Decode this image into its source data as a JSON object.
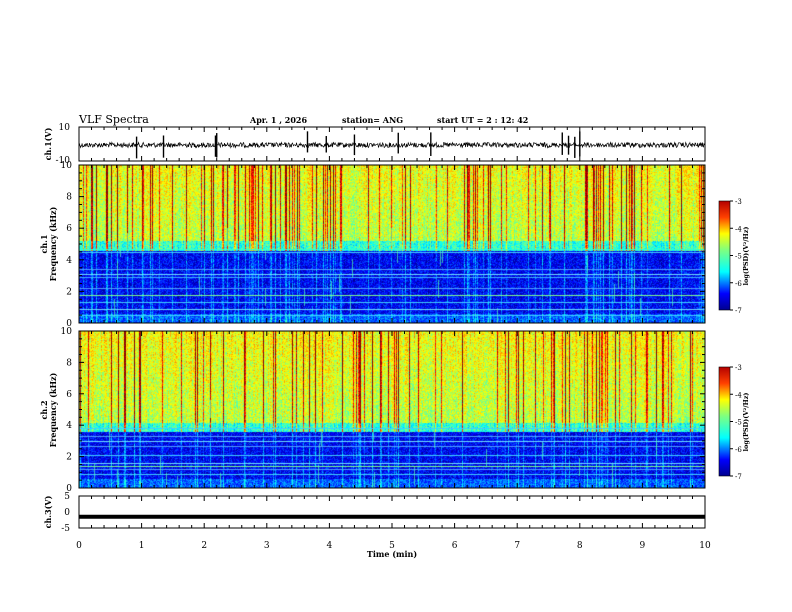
{
  "header": {
    "title": "VLF Spectra",
    "date": "Apr. 1  , 2026",
    "station": "station= ANG",
    "start_time": "start  UT =   2  : 12: 42"
  },
  "colors": {
    "waveform": "#000000",
    "spec_low": "#00008f",
    "spec_high": "#b40000"
  },
  "chart_data": [
    {
      "type": "line",
      "name": "ch1-waveform",
      "ylabel": "ch.1(V)",
      "ylim": [
        -10,
        10
      ],
      "yticks": [
        "10",
        "-10"
      ],
      "xlim": [
        0,
        10
      ],
      "baseline": 0,
      "note": "noisy broadband waveform centred near 0 V with spikes"
    },
    {
      "type": "heatmap",
      "name": "ch1-spectrogram",
      "ylabel": "ch.1",
      "ylabel2": "Frequency  (kHz)",
      "ylim": [
        0,
        10
      ],
      "yticks": [
        "0",
        "2",
        "4",
        "6",
        "8",
        "10"
      ],
      "xlim": [
        0,
        10
      ],
      "colorbar": {
        "label": "log(PSD)(V²/Hz)",
        "range": [
          -7,
          -3
        ],
        "ticks": [
          "-3",
          "-4",
          "-5",
          "-6",
          "-7"
        ]
      }
    },
    {
      "type": "heatmap",
      "name": "ch2-spectrogram",
      "ylabel": "ch.2",
      "ylabel2": "Frequency  (kHz)",
      "ylim": [
        0,
        10
      ],
      "yticks": [
        "0",
        "2",
        "4",
        "6",
        "8",
        "10"
      ],
      "xlim": [
        0,
        10
      ],
      "colorbar": {
        "label": "log(PSD)(V²/Hz)",
        "range": [
          -7,
          -3
        ],
        "ticks": [
          "-3",
          "-4",
          "-5",
          "-6",
          "-7"
        ]
      }
    },
    {
      "type": "line",
      "name": "ch3-waveform",
      "ylabel": "ch.3(V)",
      "ylim": [
        -5,
        5
      ],
      "yticks": [
        "5",
        "0",
        "-5"
      ],
      "xlim": [
        0,
        10
      ],
      "baseline": -1.5
    }
  ],
  "xaxis": {
    "label": "Time  (min)",
    "ticks": [
      "0",
      "1",
      "2",
      "3",
      "4",
      "5",
      "6",
      "7",
      "8",
      "9",
      "10"
    ]
  }
}
